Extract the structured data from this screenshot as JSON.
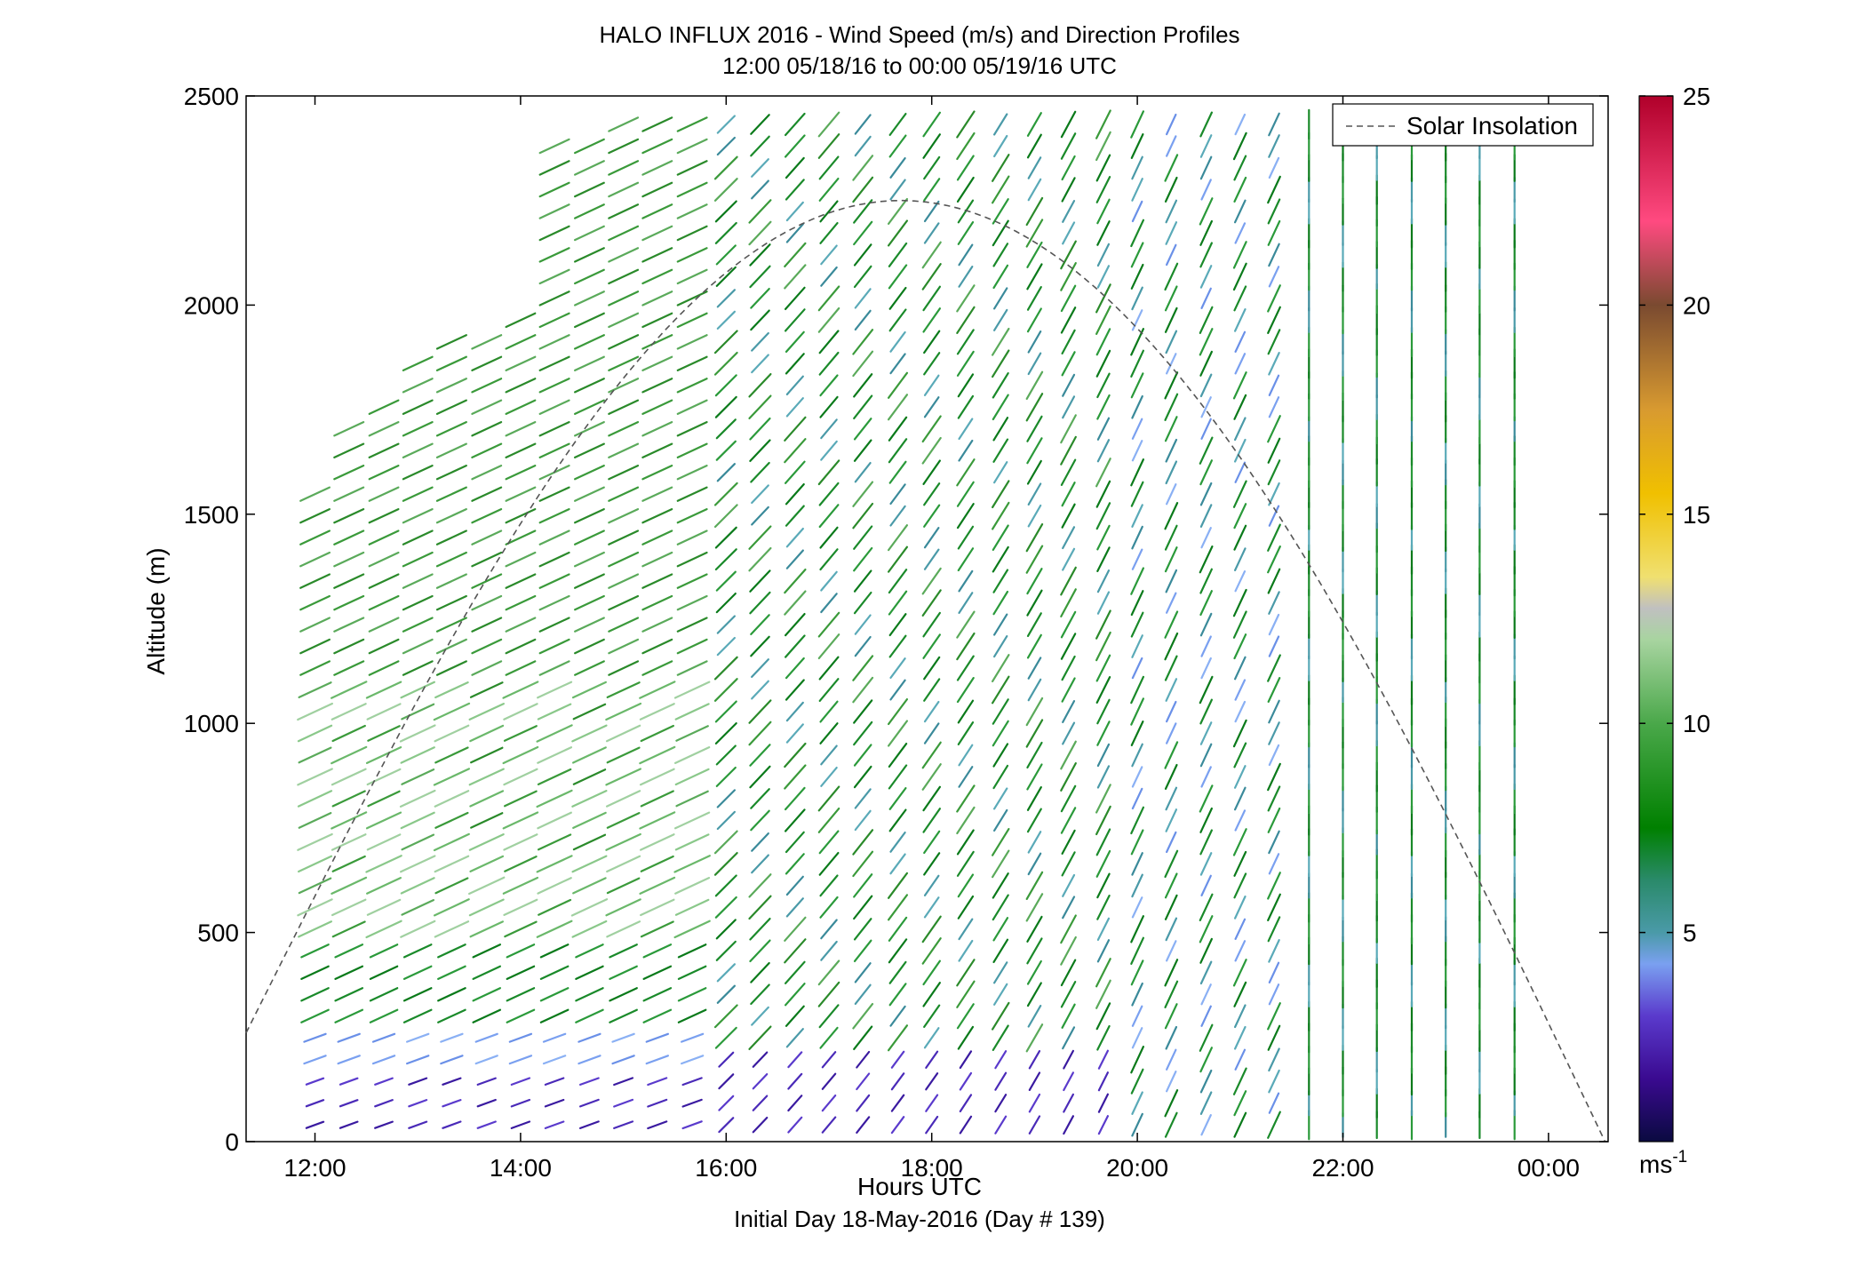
{
  "chart_data": {
    "type": "scatter",
    "title": "HALO INFLUX 2016 - Wind Speed (m/s) and Direction Profiles",
    "subtitle": "12:00 05/18/16 to 00:00 05/19/16  UTC",
    "xlabel": "Hours UTC",
    "footer": "Initial Day 18-May-2016 (Day # 139)",
    "ylabel": "Altitude (m)",
    "xlim": [
      11.33,
      24.58
    ],
    "ylim": [
      0,
      2500
    ],
    "x_tick_values": [
      12,
      14,
      16,
      18,
      20,
      22,
      24
    ],
    "x_tick_labels": [
      "12:00",
      "14:00",
      "16:00",
      "18:00",
      "20:00",
      "22:00",
      "00:00"
    ],
    "y_tick_values": [
      0,
      500,
      1000,
      1500,
      2000,
      2500
    ],
    "y_tick_labels": [
      "0",
      "500",
      "1000",
      "1500",
      "2000",
      "2500"
    ],
    "colorbar": {
      "range": [
        0,
        25
      ],
      "tick_values": [
        5,
        10,
        15,
        20,
        25
      ],
      "tick_labels": [
        "5",
        "10",
        "15",
        "20",
        "25"
      ],
      "unit_base": "ms",
      "unit_exp": "-1"
    },
    "legend": {
      "label": "Solar Insolation",
      "position": "top-right"
    },
    "solar_insolation_curve": {
      "start": [
        11.33,
        260
      ],
      "peak": [
        17.7,
        2250
      ],
      "end": [
        24.55,
        0
      ]
    },
    "series": [
      {
        "name": "Wind barbs",
        "profile_times_h": [
          12.0,
          12.33,
          12.67,
          13.0,
          13.33,
          13.67,
          14.0,
          14.33,
          14.67,
          15.0,
          15.33,
          15.67,
          16.0,
          16.33,
          16.67,
          17.0,
          17.33,
          17.67,
          18.0,
          18.33,
          18.67,
          19.0,
          19.33,
          19.67,
          20.0,
          20.33,
          20.67,
          21.0,
          21.33,
          21.67,
          22.0,
          22.33,
          22.67,
          23.0,
          23.33,
          23.67
        ],
        "top_altitude_m": [
          1600,
          1750,
          1800,
          1900,
          1950,
          1975,
          2000,
          2450,
          2450,
          2500,
          2500,
          2500,
          2500,
          2500,
          2500,
          2500,
          2500,
          2500,
          2500,
          2500,
          2500,
          2500,
          2500,
          2500,
          2500,
          2500,
          2500,
          2500,
          2500,
          2500,
          2500,
          2500,
          2500,
          2500,
          2500,
          2500
        ],
        "direction_deg_by_period": [
          {
            "hours": "12:00-16:00",
            "alt_m": "0-300",
            "dir_deg": 250,
            "speed_ms": 3
          },
          {
            "hours": "12:00-16:00",
            "alt_m": "300-2500",
            "dir_deg": 245,
            "speed_ms": 9
          },
          {
            "hours": "16:00-20:00",
            "alt_m": "0-2500",
            "dir_deg": 225,
            "speed_ms": 7
          },
          {
            "hours": "20:00-21:30",
            "alt_m": "0-2500",
            "dir_deg": 200,
            "speed_ms": 6
          },
          {
            "hours": "21:30-00:00",
            "alt_m": "0-2500",
            "dir_deg": 180,
            "speed_ms": 6
          }
        ]
      }
    ]
  }
}
